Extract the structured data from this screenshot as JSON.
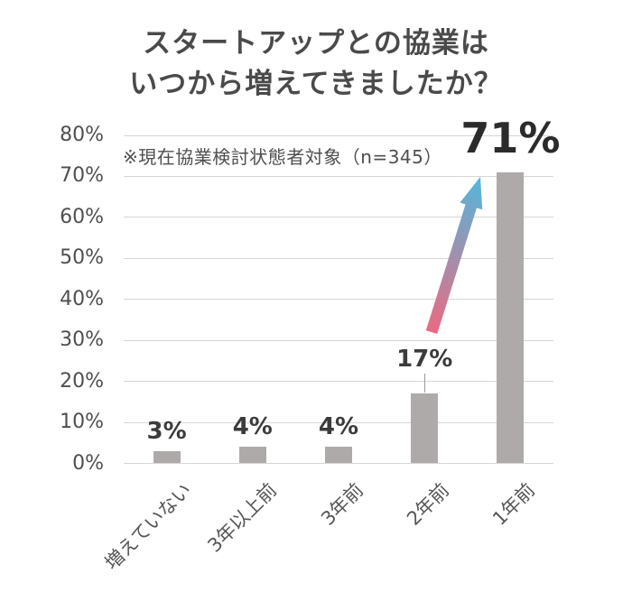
{
  "title": {
    "line1": "スタートアップとの協業は",
    "line2": "いつから増えてきましたか？"
  },
  "annotation": "※現在協業検討状態者対象（n=345）",
  "chart_data": {
    "type": "bar",
    "title": "スタートアップとの協業はいつから増えてきましたか？",
    "note": "※現在協業検討状態者対象（n=345）",
    "categories": [
      "増えていない",
      "3年以上前",
      "3年前",
      "2年前",
      "1年前"
    ],
    "values": [
      3,
      4,
      4,
      17,
      71
    ],
    "value_labels": [
      "3%",
      "4%",
      "4%",
      "17%",
      "71%"
    ],
    "label_styles": [
      "normal",
      "normal",
      "normal",
      "leader",
      "big"
    ],
    "yticks": [
      "0%",
      "10%",
      "20%",
      "30%",
      "40%",
      "50%",
      "60%",
      "70%",
      "80%"
    ],
    "ylim": [
      0,
      80
    ],
    "grid": true,
    "legend": false,
    "xlabel": "",
    "ylabel": "",
    "annotations": {
      "arrow": {
        "from_category": "2年前",
        "to_category": "1年前",
        "gradient": [
          "#eb6a81",
          "#53b7dc"
        ]
      }
    },
    "colors": {
      "bar": "#aeaaaa",
      "grid": "#d6d6d6",
      "title_text": "#4a4a4a",
      "axis_text": "#4f4f4f",
      "category_text": "#565656",
      "value_label": "#3b3b3b",
      "big_label": "#2b2b2b",
      "leader_line": "#9b9b9b",
      "arrow_start": "#eb6a81",
      "arrow_end": "#53b7dc",
      "background": "#ffffff"
    }
  }
}
